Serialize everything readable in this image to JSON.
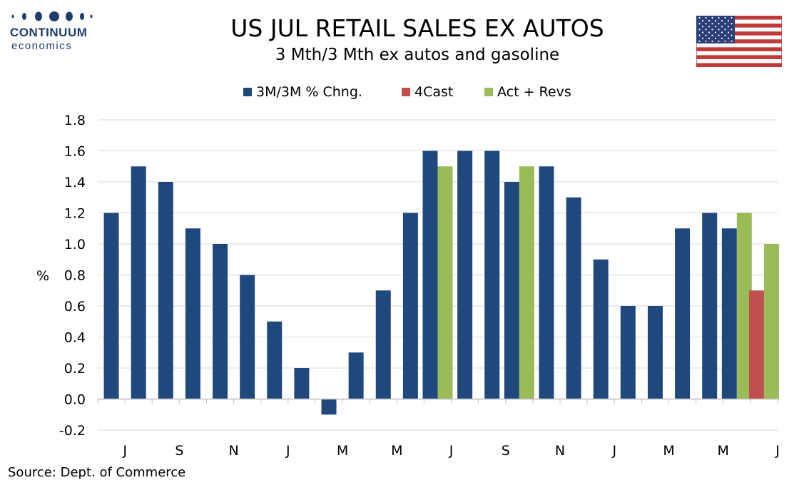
{
  "logo": {
    "word": "CONTINUUM",
    "sub": "economics"
  },
  "title": "US JUL RETAIL SALES EX AUTOS",
  "subtitle": "3 Mth/3 Mth  ex autos and gasoline",
  "source": "Source: Dept. of Commerce",
  "colors": {
    "blue": "#1f497d",
    "red": "#c0504d",
    "green": "#9bbb59"
  },
  "chart_data": {
    "type": "bar",
    "ylabel": "%",
    "ylim": [
      -0.2,
      1.8
    ],
    "yticks": [
      "1.8",
      "1.6",
      "1.4",
      "1.2",
      "1.0",
      "0.8",
      "0.6",
      "0.4",
      "0.2",
      "0.0",
      "-0.2"
    ],
    "x_tick_labels": [
      "J",
      "S",
      "N",
      "J",
      "M",
      "M",
      "J",
      "S",
      "N",
      "J",
      "M",
      "M",
      "J"
    ],
    "grid": "horizontal",
    "legend_position": "top",
    "series": [
      {
        "name": "3M/3M % Chng.",
        "color": "#1f497d",
        "values": [
          1.2,
          1.5,
          1.4,
          1.1,
          1.0,
          0.8,
          0.5,
          0.2,
          -0.1,
          0.3,
          0.7,
          1.2,
          1.6,
          1.6,
          1.6,
          1.4,
          1.5,
          1.3,
          0.9,
          0.6,
          0.6,
          1.1,
          1.2,
          1.1,
          null
        ]
      },
      {
        "name": "4Cast",
        "color": "#c0504d",
        "values": [
          null,
          null,
          null,
          null,
          null,
          null,
          null,
          null,
          null,
          null,
          null,
          null,
          null,
          null,
          null,
          null,
          null,
          null,
          null,
          null,
          null,
          null,
          null,
          null,
          0.7
        ]
      },
      {
        "name": "Act + Revs",
        "color": "#9bbb59",
        "values": [
          null,
          null,
          null,
          null,
          null,
          null,
          null,
          null,
          null,
          null,
          null,
          null,
          1.5,
          null,
          null,
          1.5,
          null,
          null,
          null,
          null,
          null,
          null,
          null,
          1.2,
          1.0
        ]
      }
    ]
  }
}
